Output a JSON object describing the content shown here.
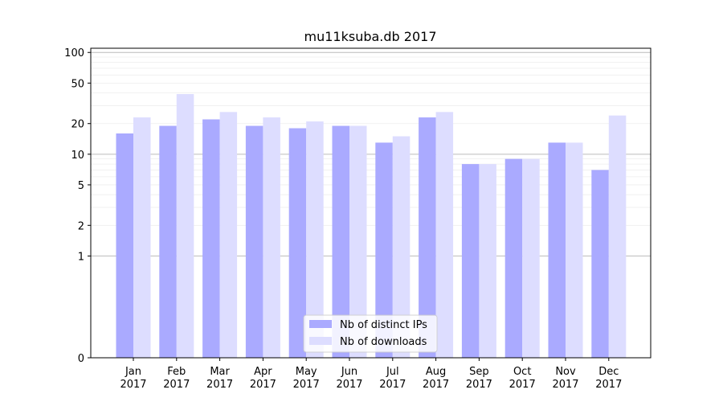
{
  "chart_data": {
    "type": "bar",
    "title": "mu11ksuba.db 2017",
    "xlabel": "",
    "ylabel": "",
    "scale": "symlog",
    "ylim": [
      0,
      110
    ],
    "yticks": [
      0,
      1,
      2,
      5,
      10,
      20,
      50,
      100
    ],
    "ytick_labels": [
      "0",
      "1",
      "2",
      "5",
      "10",
      "20",
      "50",
      "100"
    ],
    "categories": [
      "Jan\n2017",
      "Feb\n2017",
      "Mar\n2017",
      "Apr\n2017",
      "May\n2017",
      "Jun\n2017",
      "Jul\n2017",
      "Aug\n2017",
      "Sep\n2017",
      "Oct\n2017",
      "Nov\n2017",
      "Dec\n2017"
    ],
    "category_lines": [
      [
        "Jan",
        "2017"
      ],
      [
        "Feb",
        "2017"
      ],
      [
        "Mar",
        "2017"
      ],
      [
        "Apr",
        "2017"
      ],
      [
        "May",
        "2017"
      ],
      [
        "Jun",
        "2017"
      ],
      [
        "Jul",
        "2017"
      ],
      [
        "Aug",
        "2017"
      ],
      [
        "Sep",
        "2017"
      ],
      [
        "Oct",
        "2017"
      ],
      [
        "Nov",
        "2017"
      ],
      [
        "Dec",
        "2017"
      ]
    ],
    "series": [
      {
        "name": "Nb of distinct IPs",
        "color": "#aaaaff",
        "values": [
          16,
          19,
          22,
          19,
          18,
          19,
          13,
          23,
          8,
          9,
          13,
          7
        ]
      },
      {
        "name": "Nb of downloads",
        "color": "#ddddff",
        "values": [
          23,
          39,
          26,
          23,
          21,
          19,
          15,
          26,
          8,
          9,
          13,
          24
        ]
      }
    ],
    "grid": true,
    "legend": "bottom-center"
  }
}
